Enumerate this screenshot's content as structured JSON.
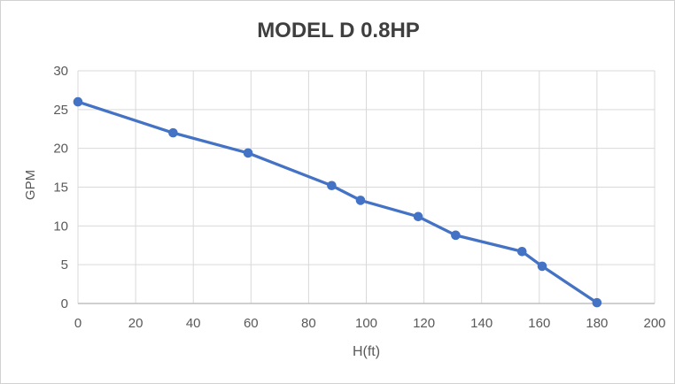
{
  "window": {
    "background_color": "#ffffff",
    "border_color": "#d2d2d2"
  },
  "chart_data": {
    "type": "line",
    "title": "MODEL D 0.8HP",
    "xlabel": "H(ft)",
    "ylabel": "GPM",
    "xlim": [
      0,
      200
    ],
    "ylim": [
      0,
      30
    ],
    "x_ticks": [
      0,
      20,
      40,
      60,
      80,
      100,
      120,
      140,
      160,
      180,
      200
    ],
    "y_ticks": [
      0,
      5,
      10,
      15,
      20,
      25,
      30
    ],
    "grid": true,
    "legend_position": "none",
    "series": [
      {
        "name": "MODEL D 0.8HP",
        "x": [
          0,
          33,
          59,
          88,
          98,
          118,
          131,
          154,
          161,
          180
        ],
        "y": [
          26,
          22,
          19.4,
          15.2,
          13.3,
          11.2,
          8.8,
          6.7,
          4.8,
          0.1
        ],
        "color": "#4472c4",
        "marker": "circle",
        "line_width": 3.3,
        "marker_radius": 5.3
      }
    ],
    "styles": {
      "grid_color": "#d9d9d9",
      "axis_line_color": "#bfbfbf",
      "tick_label_color": "#595959",
      "axis_title_color": "#595959",
      "title_color": "#3f3f3f"
    }
  }
}
